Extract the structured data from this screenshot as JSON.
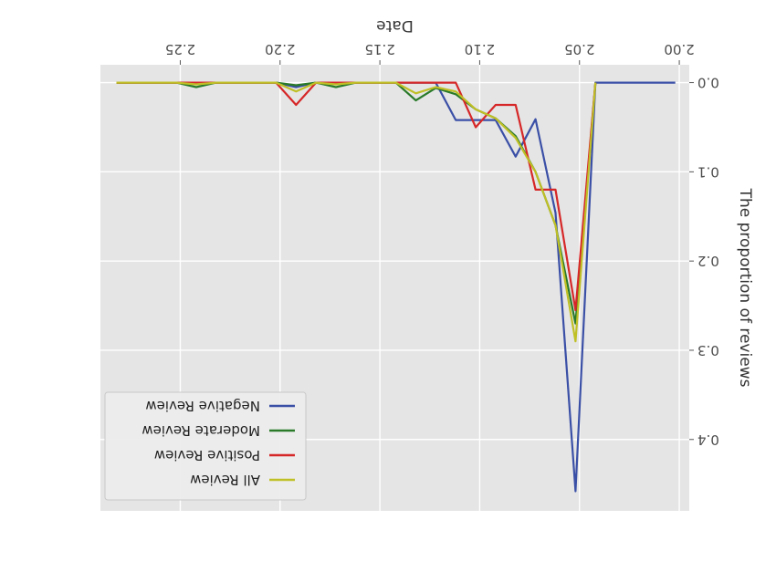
{
  "chart_data": {
    "type": "line",
    "rotation_deg": 180,
    "xlabel": "Date",
    "ylabel": "The proportion of reviews",
    "xlim": [
      1.995,
      2.29
    ],
    "ylim": [
      -0.02,
      0.48
    ],
    "x_ticks": [
      {
        "value": 2.0,
        "label": "2.00"
      },
      {
        "value": 2.05,
        "label": "2.05"
      },
      {
        "value": 2.1,
        "label": "2.10"
      },
      {
        "value": 2.15,
        "label": "2.15"
      },
      {
        "value": 2.2,
        "label": "2.20"
      },
      {
        "value": 2.25,
        "label": "2.25"
      }
    ],
    "y_ticks": [
      {
        "value": 0.0,
        "label": "0.0"
      },
      {
        "value": 0.1,
        "label": "0.1"
      },
      {
        "value": 0.2,
        "label": "0.2"
      },
      {
        "value": 0.3,
        "label": "0.3"
      },
      {
        "value": 0.4,
        "label": "0.4"
      }
    ],
    "grid": true,
    "legend_position": "lower-left",
    "series": [
      {
        "name": "Negative Review",
        "color": "#3a4fa6",
        "x": [
          2.282,
          2.252,
          2.242,
          2.232,
          2.222,
          2.212,
          2.202,
          2.192,
          2.182,
          2.172,
          2.162,
          2.152,
          2.142,
          2.132,
          2.122,
          2.112,
          2.102,
          2.092,
          2.082,
          2.072,
          2.062,
          2.052,
          2.042,
          2.032,
          2.002
        ],
        "y": [
          0.0,
          0.0,
          0.0,
          0.0,
          0.0,
          0.0,
          0.0,
          0.005,
          0.0,
          0.0,
          0.0,
          0.0,
          0.0,
          0.0,
          0.0,
          0.042,
          0.042,
          0.042,
          0.083,
          0.041,
          0.146,
          0.458,
          0.0,
          0.0,
          0.0
        ]
      },
      {
        "name": "Moderate Review",
        "color": "#2a7a2a",
        "x": [
          2.282,
          2.252,
          2.242,
          2.232,
          2.222,
          2.212,
          2.202,
          2.192,
          2.182,
          2.172,
          2.162,
          2.152,
          2.142,
          2.132,
          2.122,
          2.112,
          2.102,
          2.092,
          2.082,
          2.072,
          2.062,
          2.052,
          2.042
        ],
        "y": [
          0.0,
          0.0,
          0.005,
          0.0,
          0.0,
          0.0,
          0.0,
          0.003,
          0.0,
          0.005,
          0.0,
          0.0,
          0.0,
          0.02,
          0.006,
          0.013,
          0.03,
          0.04,
          0.06,
          0.1,
          0.16,
          0.27,
          0.0
        ]
      },
      {
        "name": "Positive Review",
        "color": "#d62728",
        "x": [
          2.282,
          2.252,
          2.242,
          2.232,
          2.222,
          2.212,
          2.202,
          2.192,
          2.182,
          2.172,
          2.162,
          2.152,
          2.142,
          2.132,
          2.122,
          2.112,
          2.102,
          2.092,
          2.082,
          2.072,
          2.062,
          2.052,
          2.042
        ],
        "y": [
          0.0,
          0.0,
          0.0,
          0.0,
          0.0,
          0.0,
          0.0,
          0.025,
          0.0,
          0.0,
          0.0,
          0.0,
          0.0,
          0.0,
          0.0,
          0.0,
          0.05,
          0.025,
          0.025,
          0.12,
          0.12,
          0.255,
          0.0
        ]
      },
      {
        "name": "All Review",
        "color": "#bfbf26",
        "x": [
          2.282,
          2.252,
          2.242,
          2.232,
          2.222,
          2.212,
          2.202,
          2.192,
          2.182,
          2.172,
          2.162,
          2.152,
          2.142,
          2.132,
          2.122,
          2.112,
          2.102,
          2.092,
          2.082,
          2.072,
          2.062,
          2.052,
          2.042
        ],
        "y": [
          0.0,
          0.0,
          0.002,
          0.0,
          0.0,
          0.0,
          0.0,
          0.01,
          0.0,
          0.002,
          0.0,
          0.0,
          0.0,
          0.012,
          0.005,
          0.01,
          0.03,
          0.04,
          0.062,
          0.1,
          0.16,
          0.29,
          0.0
        ]
      }
    ]
  }
}
